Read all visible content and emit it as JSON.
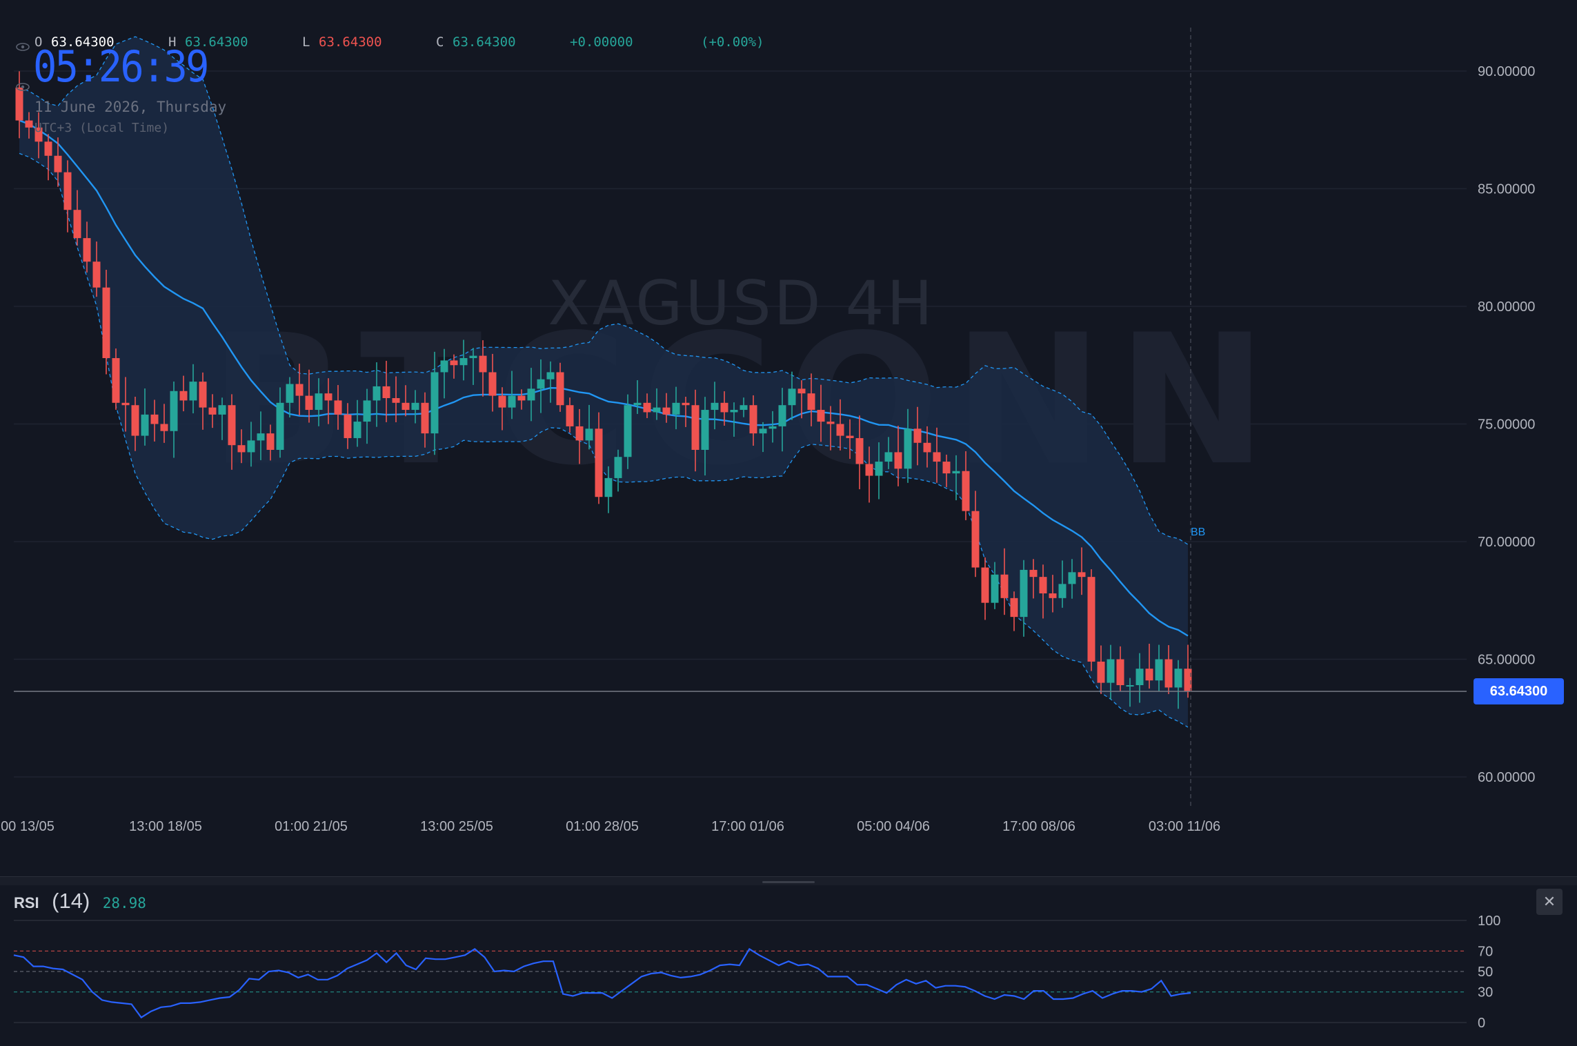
{
  "legend": {
    "open_label": "O",
    "open": "63.64300",
    "high_label": "H",
    "high": "63.64300",
    "low_label": "L",
    "low": "63.64300",
    "close_label": "C",
    "close": "63.64300",
    "change": "+0.00000",
    "change_pct": "(+0.00%)"
  },
  "clock": {
    "time": "05:26:39",
    "date": "11 June 2026, Thursday",
    "tz": "UTC+3 (Local Time)"
  },
  "watermark": {
    "symbol": "XAGUSD 4H",
    "brand": "BTCCONN"
  },
  "current_price_label": "63.64300",
  "bb_label": "BB",
  "rsi": {
    "name": "RSI",
    "period": "(14)",
    "value": "28.98",
    "close_symbol": "✕"
  },
  "colors": {
    "up": "#26a69a",
    "down": "#ef5350",
    "bb": "#2196f3",
    "bb_fill": "#1b2a44",
    "rsi_line": "#2962ff",
    "price_label": "#2962ff",
    "background": "#131722"
  },
  "chart_data": [
    {
      "type": "candlestick",
      "title": "XAGUSD 4H",
      "x_tick_labels": [
        "00 13/05",
        "13:00 18/05",
        "01:00 21/05",
        "13:00 25/05",
        "01:00 28/05",
        "17:00 01/06",
        "05:00 04/06",
        "17:00 08/06",
        "03:00 11/06"
      ],
      "y_tick_labels": [
        "90.00000",
        "85.00000",
        "80.00000",
        "75.00000",
        "70.00000",
        "65.00000",
        "60.00000"
      ],
      "ylim": [
        58.5,
        92
      ],
      "current_price": 63.643,
      "closes": [
        87.9,
        87.6,
        87.0,
        86.4,
        85.7,
        84.1,
        82.9,
        81.9,
        80.8,
        77.8,
        75.9,
        75.8,
        74.5,
        75.4,
        75.0,
        74.7,
        76.4,
        76.0,
        76.8,
        75.7,
        75.4,
        75.8,
        74.1,
        73.8,
        74.3,
        74.6,
        73.9,
        75.9,
        76.7,
        76.2,
        75.6,
        76.3,
        76.0,
        75.4,
        74.4,
        75.1,
        76.0,
        76.6,
        76.1,
        75.9,
        75.6,
        75.9,
        74.6,
        77.2,
        77.7,
        77.5,
        77.8,
        77.9,
        77.2,
        76.2,
        75.7,
        76.2,
        76.0,
        76.5,
        76.9,
        77.2,
        75.8,
        74.9,
        74.3,
        74.8,
        71.9,
        72.7,
        73.6,
        75.8,
        75.9,
        75.5,
        75.7,
        75.4,
        75.9,
        75.8,
        73.9,
        75.6,
        75.9,
        75.5,
        75.6,
        75.8,
        74.6,
        74.8,
        74.9,
        75.8,
        76.5,
        76.3,
        75.6,
        75.1,
        75.0,
        74.5,
        74.4,
        73.3,
        72.8,
        73.4,
        73.8,
        73.1,
        74.8,
        74.2,
        73.8,
        73.4,
        72.9,
        73.0,
        71.3,
        68.9,
        67.4,
        68.6,
        67.6,
        66.8,
        68.8,
        68.5,
        67.8,
        67.6,
        68.2,
        68.7,
        68.5,
        64.9,
        64.0,
        65.0,
        63.9,
        63.9,
        64.6,
        64.1,
        65.0,
        63.8,
        64.6,
        63.643
      ],
      "volume_scale": "linear"
    },
    {
      "type": "line",
      "title": "RSI (14)",
      "y_tick_labels": [
        "100",
        "70",
        "50",
        "30",
        "0"
      ],
      "ylim": [
        0,
        100
      ],
      "levels": [
        70,
        50,
        30
      ],
      "values": [
        66,
        64,
        55,
        55,
        53,
        52,
        47,
        42,
        30,
        22,
        20,
        19,
        18,
        5,
        11,
        15,
        16,
        19,
        19,
        20,
        22,
        24,
        25,
        32,
        43,
        42,
        50,
        51,
        49,
        44,
        47,
        42,
        42,
        46,
        53,
        57,
        61,
        68,
        59,
        68,
        56,
        52,
        63,
        62,
        62,
        64,
        66,
        72,
        64,
        50,
        51,
        50,
        55,
        58,
        60,
        60,
        28,
        26,
        29,
        29,
        29,
        24,
        31,
        38,
        45,
        48,
        49,
        46,
        44,
        45,
        47,
        51,
        56,
        57,
        56,
        72,
        66,
        61,
        56,
        60,
        56,
        57,
        53,
        45,
        45,
        45,
        37,
        37,
        33,
        29,
        37,
        42,
        38,
        41,
        34,
        36,
        36,
        35,
        31,
        26,
        23,
        27,
        26,
        23,
        31,
        31,
        23,
        23,
        24,
        28,
        31,
        24,
        28,
        31,
        31,
        30,
        33,
        41,
        26,
        28,
        28.98
      ]
    }
  ]
}
